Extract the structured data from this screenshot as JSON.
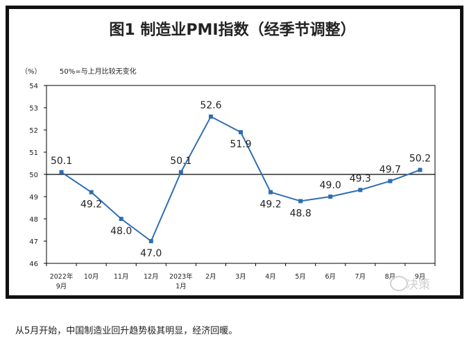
{
  "chart_data": {
    "type": "line",
    "title": "图1  制造业PMI指数（经季节调整）",
    "ylabel": "（%）",
    "reference_note": "50%=与上月比较无变化",
    "reference_value": 50,
    "ylim": [
      46,
      54
    ],
    "yticks": [
      46,
      47,
      48,
      49,
      50,
      51,
      52,
      53,
      54
    ],
    "categories": [
      [
        "2022年",
        "9月"
      ],
      [
        "10月"
      ],
      [
        "11月"
      ],
      [
        "12月"
      ],
      [
        "2023年",
        "1月"
      ],
      [
        "2月"
      ],
      [
        "3月"
      ],
      [
        "4月"
      ],
      [
        "5月"
      ],
      [
        "6月"
      ],
      [
        "7月"
      ],
      [
        "8月"
      ],
      [
        "9月"
      ]
    ],
    "values": [
      50.1,
      49.2,
      48.0,
      47.0,
      50.1,
      52.6,
      51.9,
      49.2,
      48.8,
      49.0,
      49.3,
      49.7,
      50.2
    ],
    "value_labels": [
      "50.1",
      "49.2",
      "48.0",
      "47.0",
      "50.1",
      "52.6",
      "51.9",
      "49.2",
      "48.8",
      "49.0",
      "49.3",
      "49.7",
      "50.2"
    ],
    "line_color": "#2e6db4",
    "axis_color": "#000000",
    "grid": false
  },
  "caption": "从5月开始，中国制造业回升趋势极其明显，经济回暖。",
  "watermark": "决策"
}
